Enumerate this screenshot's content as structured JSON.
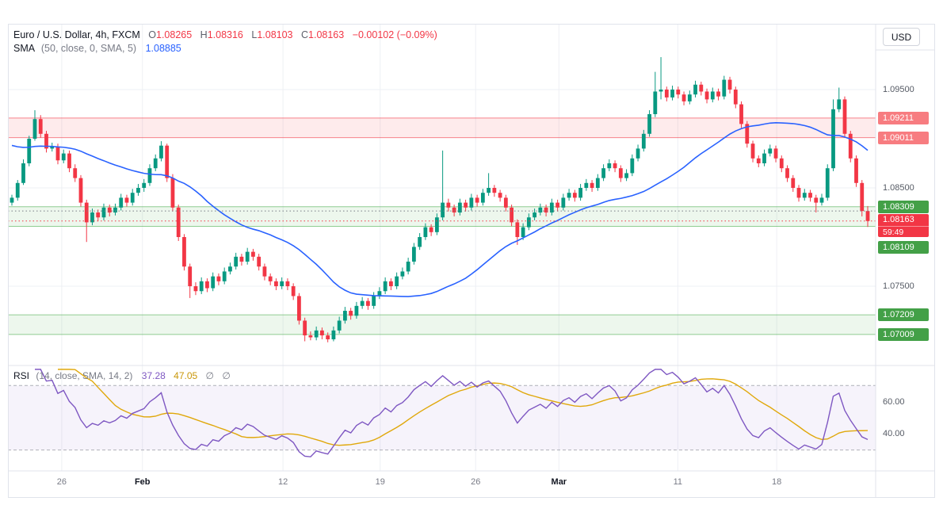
{
  "legend": {
    "title": "Euro / U.S. Dollar, 4h, FXCM",
    "o_key": "O",
    "o_val": "1.08265",
    "h_key": "H",
    "h_val": "1.08316",
    "l_key": "L",
    "l_val": "1.08103",
    "c_key": "C",
    "c_val": "1.08163",
    "change": "−0.00102 (−0.09%)",
    "sma_name": "SMA",
    "sma_params": "(50, close, 0, SMA, 5)",
    "sma_val": "1.08885"
  },
  "rsi_legend": {
    "name": "RSI",
    "params": "(14, close, SMA, 14, 2)",
    "val": "37.28",
    "ma_val": "47.05",
    "bb_upper": "∅",
    "bb_lower": "∅"
  },
  "price_axis": {
    "currency_button": "USD",
    "plain_labels": [
      {
        "text": "1.09500",
        "price": 1.095
      },
      {
        "text": "1.08500",
        "price": 1.085
      },
      {
        "text": "1.07500",
        "price": 1.075
      }
    ],
    "level_badges": [
      {
        "text": "1.09211",
        "price": 1.09211,
        "bg": "#f77c80"
      },
      {
        "text": "1.09011",
        "price": 1.09011,
        "bg": "#f77c80"
      },
      {
        "text": "1.08309",
        "price": 1.08309,
        "bg": "#43a047"
      },
      {
        "text": "1.08109",
        "price": 1.08109,
        "bg": "#43a047"
      },
      {
        "text": "1.07209",
        "price": 1.07209,
        "bg": "#43a047"
      },
      {
        "text": "1.07009",
        "price": 1.07009,
        "bg": "#43a047"
      }
    ],
    "last_price_badge": {
      "text": "1.08163",
      "countdown": "59:49",
      "price": 1.08163,
      "bg": "#f23645"
    },
    "rsi_labels": [
      {
        "text": "60.00",
        "value": 60
      },
      {
        "text": "40.00",
        "value": 40
      }
    ]
  },
  "colors": {
    "up": "#089981",
    "down": "#f23645",
    "sma_line": "#2962ff",
    "rsi_line": "#7e57c2",
    "rsi_ma_line": "#e0a80b",
    "grid": "#eef0f4",
    "border": "#e0e3eb",
    "band_fill": "#7e57c2",
    "text_dark": "#131722",
    "text_gray": "#787b86"
  },
  "chart_data": [
    {
      "type": "candlestick",
      "title": "Euro / U.S. Dollar, 4h, FXCM",
      "symbol": "EUR/USD",
      "interval": "4h",
      "exchange": "FXCM",
      "last_ohlc": {
        "open": 1.08265,
        "high": 1.08316,
        "low": 1.08103,
        "close": 1.08163,
        "change": -0.00102,
        "change_pct": -0.09
      },
      "encoding_note": "candle values are [open,high,low,close] stored as (price - 1.0) * 100000",
      "ylim": [
        1.06694,
        1.10169
      ],
      "grid_prices": [
        1.095,
        1.085,
        1.075
      ],
      "overlay": {
        "name": "SMA",
        "period": 50,
        "last": 1.08885
      },
      "zones": [
        {
          "top": 1.09211,
          "bottom": 1.09011,
          "color": "#f23645"
        },
        {
          "top": 1.08309,
          "bottom": 1.08109,
          "color": "#4caf50"
        },
        {
          "top": 1.07209,
          "bottom": 1.07009,
          "color": "#4caf50"
        }
      ],
      "price_lines": [
        {
          "price": 1.08265,
          "color": "#787b86"
        },
        {
          "price": 1.08163,
          "color": "#f23645"
        }
      ],
      "time_ticks": [
        {
          "label": "26",
          "pos": 0.062,
          "month": false
        },
        {
          "label": "Feb",
          "pos": 0.155,
          "month": true
        },
        {
          "label": "12",
          "pos": 0.317,
          "month": false
        },
        {
          "label": "19",
          "pos": 0.429,
          "month": false
        },
        {
          "label": "26",
          "pos": 0.539,
          "month": false
        },
        {
          "label": "Mar",
          "pos": 0.635,
          "month": true
        },
        {
          "label": "11",
          "pos": 0.772,
          "month": false
        },
        {
          "label": "18",
          "pos": 0.886,
          "month": false
        }
      ],
      "candles": [
        [
          8350,
          8430,
          8320,
          8400
        ],
        [
          8400,
          8580,
          8370,
          8550
        ],
        [
          8550,
          8790,
          8530,
          8750
        ],
        [
          8750,
          9030,
          8720,
          9000
        ],
        [
          9000,
          9290,
          8980,
          9200
        ],
        [
          9200,
          9240,
          9010,
          9050
        ],
        [
          9050,
          9080,
          8860,
          8900
        ],
        [
          8900,
          8960,
          8870,
          8920
        ],
        [
          8920,
          8950,
          8740,
          8780
        ],
        [
          8780,
          8890,
          8750,
          8850
        ],
        [
          8850,
          8880,
          8660,
          8700
        ],
        [
          8700,
          8740,
          8560,
          8600
        ],
        [
          8600,
          8630,
          8310,
          8350
        ],
        [
          8350,
          8380,
          7950,
          8150
        ],
        [
          8150,
          8290,
          8120,
          8250
        ],
        [
          8250,
          8280,
          8160,
          8200
        ],
        [
          8200,
          8340,
          8170,
          8300
        ],
        [
          8300,
          8330,
          8210,
          8250
        ],
        [
          8250,
          8340,
          8220,
          8300
        ],
        [
          8300,
          8440,
          8270,
          8400
        ],
        [
          8400,
          8430,
          8310,
          8350
        ],
        [
          8350,
          8490,
          8320,
          8450
        ],
        [
          8450,
          8540,
          8420,
          8500
        ],
        [
          8500,
          8590,
          8460,
          8550
        ],
        [
          8550,
          8740,
          8520,
          8700
        ],
        [
          8700,
          8840,
          8670,
          8800
        ],
        [
          8800,
          8975,
          8770,
          8930
        ],
        [
          8930,
          8950,
          8560,
          8600
        ],
        [
          8600,
          8640,
          8260,
          8300
        ],
        [
          8300,
          8330,
          7960,
          8000
        ],
        [
          8000,
          8030,
          7660,
          7700
        ],
        [
          7700,
          7730,
          7380,
          7500
        ],
        [
          7500,
          7540,
          7410,
          7450
        ],
        [
          7450,
          7590,
          7420,
          7550
        ],
        [
          7550,
          7580,
          7440,
          7480
        ],
        [
          7480,
          7640,
          7450,
          7600
        ],
        [
          7600,
          7630,
          7510,
          7550
        ],
        [
          7550,
          7690,
          7520,
          7650
        ],
        [
          7650,
          7740,
          7620,
          7700
        ],
        [
          7700,
          7840,
          7670,
          7800
        ],
        [
          7800,
          7830,
          7710,
          7750
        ],
        [
          7750,
          7890,
          7720,
          7850
        ],
        [
          7850,
          7880,
          7760,
          7800
        ],
        [
          7800,
          7830,
          7660,
          7700
        ],
        [
          7700,
          7730,
          7560,
          7600
        ],
        [
          7600,
          7630,
          7510,
          7550
        ],
        [
          7550,
          7580,
          7460,
          7500
        ],
        [
          7500,
          7590,
          7470,
          7550
        ],
        [
          7550,
          7580,
          7460,
          7500
        ],
        [
          7500,
          7530,
          7360,
          7400
        ],
        [
          7400,
          7430,
          7110,
          7150
        ],
        [
          7150,
          7180,
          6940,
          7000
        ],
        [
          7000,
          7040,
          6950,
          6980
        ],
        [
          6980,
          7090,
          6950,
          7050
        ],
        [
          7050,
          7080,
          6960,
          7000
        ],
        [
          7000,
          7030,
          6930,
          6960
        ],
        [
          6960,
          7090,
          6940,
          7050
        ],
        [
          7050,
          7190,
          7020,
          7150
        ],
        [
          7150,
          7290,
          7120,
          7250
        ],
        [
          7250,
          7280,
          7160,
          7200
        ],
        [
          7200,
          7340,
          7170,
          7300
        ],
        [
          7300,
          7390,
          7270,
          7350
        ],
        [
          7350,
          7380,
          7260,
          7300
        ],
        [
          7300,
          7440,
          7270,
          7400
        ],
        [
          7400,
          7490,
          7370,
          7450
        ],
        [
          7450,
          7590,
          7420,
          7550
        ],
        [
          7550,
          7580,
          7460,
          7500
        ],
        [
          7500,
          7640,
          7470,
          7600
        ],
        [
          7600,
          7690,
          7570,
          7650
        ],
        [
          7650,
          7790,
          7620,
          7750
        ],
        [
          7750,
          7940,
          7720,
          7900
        ],
        [
          7900,
          8040,
          7870,
          8000
        ],
        [
          8000,
          8140,
          7970,
          8100
        ],
        [
          8100,
          8130,
          8010,
          8050
        ],
        [
          8050,
          8240,
          8020,
          8200
        ],
        [
          8200,
          8880,
          8170,
          8350
        ],
        [
          8350,
          8390,
          8260,
          8300
        ],
        [
          8300,
          8330,
          8210,
          8250
        ],
        [
          8250,
          8390,
          8220,
          8350
        ],
        [
          8350,
          8380,
          8260,
          8300
        ],
        [
          8300,
          8440,
          8270,
          8400
        ],
        [
          8400,
          8430,
          8310,
          8350
        ],
        [
          8350,
          8490,
          8320,
          8450
        ],
        [
          8450,
          8650,
          8420,
          8500
        ],
        [
          8500,
          8530,
          8410,
          8450
        ],
        [
          8450,
          8480,
          8360,
          8400
        ],
        [
          8400,
          8430,
          8260,
          8300
        ],
        [
          8300,
          8330,
          8110,
          8150
        ],
        [
          8150,
          8180,
          7920,
          8000
        ],
        [
          8000,
          8140,
          7970,
          8100
        ],
        [
          8100,
          8240,
          8070,
          8200
        ],
        [
          8200,
          8290,
          8170,
          8250
        ],
        [
          8250,
          8340,
          8220,
          8300
        ],
        [
          8300,
          8330,
          8210,
          8250
        ],
        [
          8250,
          8390,
          8220,
          8350
        ],
        [
          8350,
          8380,
          8260,
          8300
        ],
        [
          8300,
          8440,
          8270,
          8400
        ],
        [
          8400,
          8490,
          8370,
          8450
        ],
        [
          8450,
          8480,
          8360,
          8400
        ],
        [
          8400,
          8540,
          8370,
          8500
        ],
        [
          8500,
          8590,
          8470,
          8550
        ],
        [
          8550,
          8580,
          8460,
          8500
        ],
        [
          8500,
          8640,
          8470,
          8600
        ],
        [
          8600,
          8740,
          8570,
          8700
        ],
        [
          8700,
          8790,
          8670,
          8750
        ],
        [
          8750,
          8780,
          8660,
          8700
        ],
        [
          8700,
          8730,
          8560,
          8600
        ],
        [
          8600,
          8690,
          8570,
          8650
        ],
        [
          8650,
          8840,
          8620,
          8800
        ],
        [
          8800,
          8940,
          8770,
          8900
        ],
        [
          8900,
          9090,
          8870,
          9050
        ],
        [
          9050,
          9290,
          9020,
          9250
        ],
        [
          9250,
          9680,
          9220,
          9480
        ],
        [
          9480,
          9830,
          9400,
          9500
        ],
        [
          9500,
          9530,
          9380,
          9420
        ],
        [
          9420,
          9540,
          9390,
          9500
        ],
        [
          9500,
          9530,
          9410,
          9450
        ],
        [
          9450,
          9480,
          9340,
          9380
        ],
        [
          9380,
          9490,
          9350,
          9450
        ],
        [
          9450,
          9590,
          9420,
          9550
        ],
        [
          9550,
          9580,
          9440,
          9480
        ],
        [
          9480,
          9510,
          9360,
          9400
        ],
        [
          9400,
          9520,
          9370,
          9480
        ],
        [
          9480,
          9510,
          9390,
          9430
        ],
        [
          9430,
          9640,
          9400,
          9600
        ],
        [
          9600,
          9630,
          9460,
          9500
        ],
        [
          9500,
          9530,
          9310,
          9350
        ],
        [
          9350,
          9380,
          9110,
          9150
        ],
        [
          9150,
          9180,
          8910,
          8950
        ],
        [
          8950,
          8980,
          8760,
          8800
        ],
        [
          8800,
          8830,
          8710,
          8750
        ],
        [
          8750,
          8890,
          8720,
          8850
        ],
        [
          8850,
          8940,
          8820,
          8900
        ],
        [
          8900,
          8930,
          8760,
          8800
        ],
        [
          8800,
          8830,
          8660,
          8700
        ],
        [
          8700,
          8730,
          8560,
          8600
        ],
        [
          8600,
          8630,
          8460,
          8500
        ],
        [
          8500,
          8530,
          8360,
          8400
        ],
        [
          8400,
          8490,
          8370,
          8450
        ],
        [
          8450,
          8480,
          8360,
          8400
        ],
        [
          8400,
          8430,
          8250,
          8350
        ],
        [
          8350,
          8440,
          8320,
          8400
        ],
        [
          8400,
          8740,
          8370,
          8700
        ],
        [
          8700,
          9400,
          8670,
          9300
        ],
        [
          9300,
          9520,
          9270,
          9400
        ],
        [
          9400,
          9430,
          9010,
          9050
        ],
        [
          9050,
          9080,
          8760,
          8800
        ],
        [
          8800,
          8830,
          8510,
          8550
        ],
        [
          8550,
          8580,
          8210,
          8265
        ],
        [
          8265,
          8316,
          8103,
          8163
        ]
      ]
    },
    {
      "type": "line",
      "name": "RSI",
      "period": 14,
      "ma_period": 14,
      "last": 37.28,
      "ma_last": 47.05,
      "levels": {
        "upper": 70,
        "lower": 30
      },
      "ylim": [
        17,
        82.4
      ],
      "axis_labels": [
        {
          "text": "60.00",
          "value": 60
        },
        {
          "text": "40.00",
          "value": 40
        }
      ]
    }
  ]
}
